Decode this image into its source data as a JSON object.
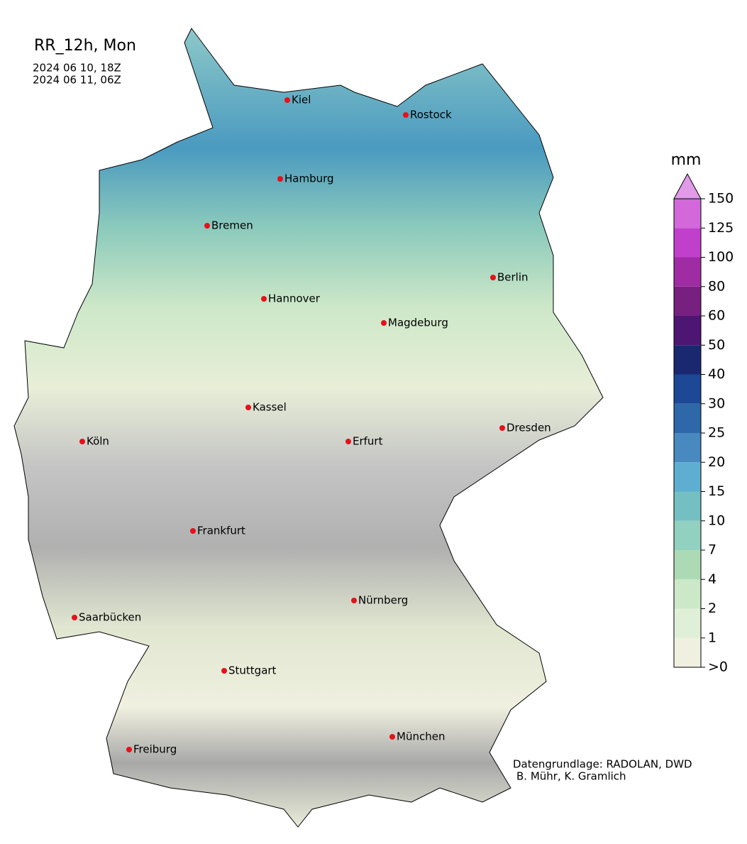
{
  "header": {
    "title": "RR_12h, Mon",
    "dates": [
      "2024 06 10, 18Z",
      "2024 06 11, 06Z"
    ]
  },
  "cities": [
    "Kiel",
    "Rostock",
    "Hamburg",
    "Bremen",
    "Berlin",
    "Hannover",
    "Magdeburg",
    "Kassel",
    "Köln",
    "Erfurt",
    "Dresden",
    "Frankfurt",
    "Nürnberg",
    "Saarbücken",
    "Stuttgart",
    "München",
    "Freiburg"
  ],
  "colorbar": {
    "unit": "mm",
    "levels": [
      {
        "value": 0,
        "label": ">0"
      },
      1,
      2,
      4,
      7,
      10,
      15,
      20,
      25,
      30,
      40,
      50,
      60,
      80,
      100,
      125,
      150
    ],
    "colors": [
      "#f0f0e0",
      "#e0f0d8",
      "#cce8c8",
      "#acdab4",
      "#92d0bf",
      "#74bfc2",
      "#5eaed2",
      "#4889c0",
      "#2e68a8",
      "#1c4896",
      "#1a2870",
      "#4c1672",
      "#772080",
      "#a02ca4",
      "#c040cc",
      "#d268da"
    ],
    "extend_color": "#e09ae8"
  },
  "credits": [
    "Datengrundlage: RADOLAN, DWD",
    "B. Mühr, K. Gramlich"
  ]
}
